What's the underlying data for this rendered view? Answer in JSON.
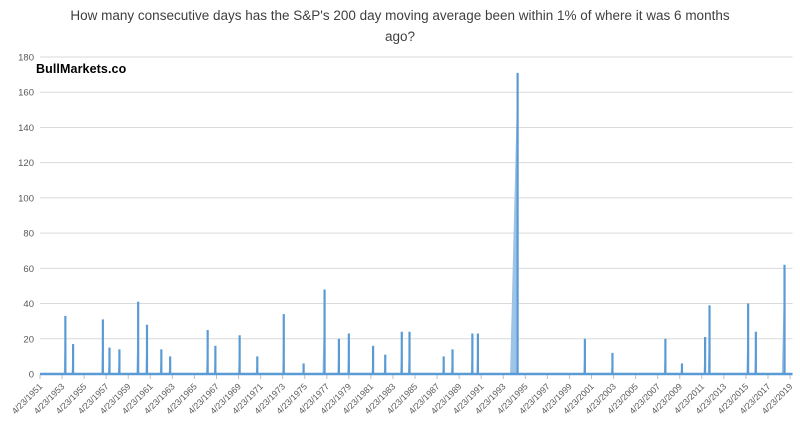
{
  "page": {
    "background": "#ffffff"
  },
  "chart_data": {
    "type": "line",
    "title": "How many consecutive days has the S&P's 200 day moving average been within 1% of where it was 6 months ago?",
    "watermark": "BullMarkets.co",
    "xlabel": "",
    "ylabel": "",
    "legend": "none",
    "grid": "horizontal",
    "ylim": [
      0,
      180
    ],
    "yticks": [
      0,
      20,
      40,
      60,
      80,
      100,
      120,
      140,
      160,
      180
    ],
    "x_tick_interval_years": 2,
    "x_tick_labels": [
      "4/23/1951",
      "4/23/1953",
      "4/23/1955",
      "4/23/1957",
      "4/23/1959",
      "4/23/1961",
      "4/23/1963",
      "4/23/1965",
      "4/23/1967",
      "4/23/1969",
      "4/23/1971",
      "4/23/1973",
      "4/23/1975",
      "4/23/1977",
      "4/23/1979",
      "4/23/1981",
      "4/23/1983",
      "4/23/1985",
      "4/23/1987",
      "4/23/1989",
      "4/23/1991",
      "4/23/1993",
      "4/23/1995",
      "4/23/1997",
      "4/23/1999",
      "4/23/2001",
      "4/23/2003",
      "4/23/2005",
      "4/23/2007",
      "4/23/2009",
      "4/23/2011",
      "4/23/2013",
      "4/23/2015",
      "4/23/2017",
      "4/23/2019"
    ],
    "x_range_years": [
      1951,
      2019
    ],
    "series_color": "#5b9bd5",
    "ramp_color": "#9dc3e6",
    "gridline_color": "#dadada",
    "axis_tick_color": "#bfbfbf",
    "axis_text_color": "#595959",
    "spikes": [
      {
        "year": 1953.3,
        "value": 33
      },
      {
        "year": 1954.0,
        "value": 17
      },
      {
        "year": 1956.7,
        "value": 31
      },
      {
        "year": 1957.3,
        "value": 15
      },
      {
        "year": 1958.2,
        "value": 14
      },
      {
        "year": 1959.9,
        "value": 41
      },
      {
        "year": 1960.7,
        "value": 28
      },
      {
        "year": 1962.0,
        "value": 14
      },
      {
        "year": 1962.8,
        "value": 10
      },
      {
        "year": 1966.2,
        "value": 25
      },
      {
        "year": 1966.9,
        "value": 16
      },
      {
        "year": 1969.1,
        "value": 22
      },
      {
        "year": 1970.7,
        "value": 10
      },
      {
        "year": 1973.1,
        "value": 34
      },
      {
        "year": 1974.9,
        "value": 6
      },
      {
        "year": 1976.8,
        "value": 48
      },
      {
        "year": 1978.1,
        "value": 20
      },
      {
        "year": 1979.0,
        "value": 23
      },
      {
        "year": 1981.2,
        "value": 16
      },
      {
        "year": 1982.3,
        "value": 11
      },
      {
        "year": 1983.8,
        "value": 24
      },
      {
        "year": 1984.5,
        "value": 24
      },
      {
        "year": 1987.6,
        "value": 10
      },
      {
        "year": 1988.4,
        "value": 14
      },
      {
        "year": 1990.2,
        "value": 23
      },
      {
        "year": 1990.7,
        "value": 23
      },
      {
        "year": 1994.3,
        "value": 171
      },
      {
        "year": 2000.4,
        "value": 20
      },
      {
        "year": 2002.9,
        "value": 12
      },
      {
        "year": 2007.7,
        "value": 20
      },
      {
        "year": 2009.2,
        "value": 6
      },
      {
        "year": 2011.3,
        "value": 21
      },
      {
        "year": 2011.7,
        "value": 39
      },
      {
        "year": 2015.2,
        "value": 40
      },
      {
        "year": 2015.9,
        "value": 24
      },
      {
        "year": 2018.5,
        "value": 62
      }
    ]
  }
}
